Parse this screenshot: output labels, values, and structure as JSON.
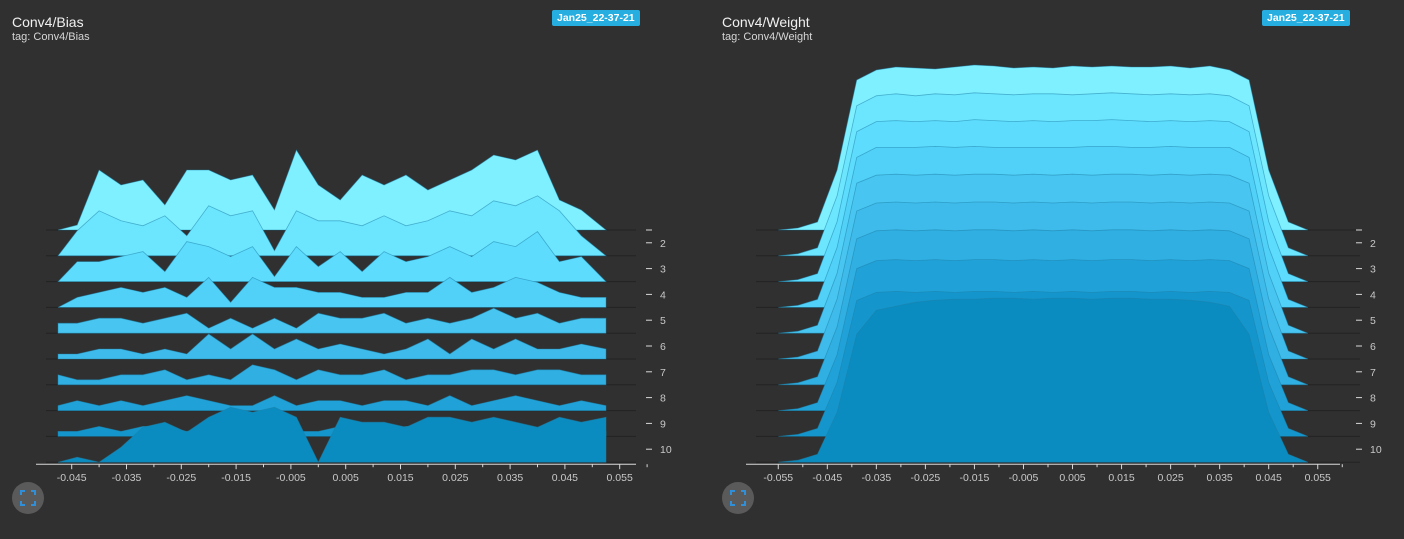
{
  "colors": {
    "background": "#303030",
    "badge": "#27aee0",
    "step_colors": [
      "#7ff0ff",
      "#6ce6ff",
      "#5ddcfd",
      "#52d1f8",
      "#48c6f1",
      "#3ebbea",
      "#30afe2",
      "#20a2d8",
      "#1496cc",
      "#0a8cc0"
    ]
  },
  "charts": [
    {
      "title": "Conv4/Bias",
      "subtitle": "tag: Conv4/Bias",
      "run": "Jan25_22-37-21",
      "expand_icon": "fullscreen-icon"
    },
    {
      "title": "Conv4/Weight",
      "subtitle": "tag: Conv4/Weight",
      "run": "Jan25_22-37-21",
      "expand_icon": "fullscreen-icon"
    }
  ],
  "chart_data": [
    {
      "type": "area",
      "title": "Conv4/Bias",
      "subtitle": "tag: Conv4/Bias",
      "chart_style": "offset histogram (ridge)",
      "x_range": [
        -0.0475,
        0.0525
      ],
      "x_ticks": [
        -0.045,
        -0.035,
        -0.025,
        -0.015,
        -0.005,
        0.005,
        0.015,
        0.025,
        0.035,
        0.045,
        0.055
      ],
      "x_tick_labels": [
        "-0.045",
        "-0.035",
        "-0.025",
        "-0.015",
        "-0.005",
        "0.005",
        "0.015",
        "0.025",
        "0.035",
        "0.045",
        "0.055"
      ],
      "step_tick_labels": [
        "2",
        "3",
        "4",
        "5",
        "6",
        "7",
        "8",
        "9",
        "10"
      ],
      "x": [
        -0.0475,
        -0.044,
        -0.04,
        -0.036,
        -0.032,
        -0.028,
        -0.024,
        -0.02,
        -0.016,
        -0.012,
        -0.008,
        -0.004,
        0.0,
        0.004,
        0.008,
        0.012,
        0.016,
        0.02,
        0.024,
        0.028,
        0.032,
        0.036,
        0.04,
        0.044,
        0.048,
        0.0525
      ],
      "series": [
        {
          "step": 1,
          "values": [
            0.0,
            5,
            60,
            45,
            50,
            25,
            60,
            60,
            50,
            55,
            20,
            80,
            45,
            30,
            55,
            45,
            55,
            40,
            50,
            60,
            75,
            70,
            80,
            30,
            20,
            0.0
          ]
        },
        {
          "step": 2,
          "values": [
            0.0,
            25,
            45,
            35,
            30,
            40,
            20,
            50,
            40,
            45,
            5,
            45,
            35,
            35,
            30,
            40,
            30,
            35,
            45,
            40,
            55,
            50,
            60,
            45,
            20,
            0.0
          ]
        },
        {
          "step": 3,
          "values": [
            0.0,
            20,
            20,
            25,
            30,
            10,
            40,
            35,
            25,
            35,
            5,
            35,
            15,
            30,
            10,
            30,
            20,
            25,
            35,
            25,
            40,
            35,
            50,
            20,
            25,
            0.0
          ]
        },
        {
          "step": 4,
          "values": [
            0.0,
            10,
            15,
            20,
            15,
            20,
            10,
            30,
            5,
            30,
            20,
            20,
            15,
            15,
            10,
            10,
            15,
            15,
            30,
            15,
            20,
            30,
            25,
            15,
            10,
            10
          ]
        },
        {
          "step": 5,
          "values": [
            10,
            10,
            15,
            15,
            10,
            15,
            20,
            5,
            15,
            5,
            15,
            5,
            20,
            15,
            15,
            20,
            10,
            15,
            10,
            15,
            25,
            15,
            20,
            10,
            15,
            15
          ]
        },
        {
          "step": 6,
          "values": [
            5,
            5,
            10,
            10,
            5,
            10,
            5,
            25,
            10,
            25,
            10,
            20,
            10,
            15,
            10,
            5,
            10,
            20,
            5,
            20,
            10,
            20,
            10,
            10,
            15,
            10
          ]
        },
        {
          "step": 7,
          "values": [
            10,
            5,
            5,
            10,
            10,
            15,
            5,
            10,
            5,
            20,
            15,
            5,
            15,
            10,
            10,
            15,
            5,
            10,
            10,
            15,
            15,
            10,
            15,
            15,
            10,
            10
          ]
        },
        {
          "step": 8,
          "values": [
            5,
            10,
            5,
            10,
            5,
            10,
            15,
            10,
            5,
            5,
            15,
            5,
            10,
            10,
            5,
            10,
            10,
            5,
            15,
            5,
            10,
            15,
            10,
            5,
            10,
            5
          ]
        },
        {
          "step": 9,
          "values": [
            5,
            5,
            10,
            5,
            10,
            10,
            5,
            10,
            15,
            10,
            10,
            5,
            5,
            10,
            10,
            5,
            10,
            10,
            10,
            10,
            10,
            10,
            5,
            10,
            5,
            5
          ]
        },
        {
          "step": 10,
          "values": [
            0.0,
            5,
            0.0,
            15,
            35,
            40,
            30,
            45,
            55,
            50,
            55,
            45,
            0.0,
            45,
            40,
            40,
            35,
            45,
            45,
            40,
            45,
            40,
            35,
            45,
            40,
            45
          ]
        }
      ]
    },
    {
      "type": "area",
      "title": "Conv4/Weight",
      "subtitle": "tag: Conv4/Weight",
      "chart_style": "offset histogram (ridge)",
      "x_range": [
        -0.0575,
        0.0575
      ],
      "x_ticks": [
        -0.055,
        -0.045,
        -0.035,
        -0.025,
        -0.015,
        -0.005,
        0.005,
        0.015,
        0.025,
        0.035,
        0.045,
        0.055
      ],
      "x_tick_labels": [
        "-0.055",
        "-0.045",
        "-0.035",
        "-0.025",
        "-0.015",
        "-0.005",
        "0.005",
        "0.015",
        "0.025",
        "0.035",
        "0.045",
        "0.055"
      ],
      "step_tick_labels": [
        "2",
        "3",
        "4",
        "5",
        "6",
        "7",
        "8",
        "9",
        "10"
      ],
      "x": [
        -0.055,
        -0.051,
        -0.047,
        -0.043,
        -0.039,
        -0.035,
        -0.031,
        -0.027,
        -0.023,
        -0.019,
        -0.015,
        -0.011,
        -0.007,
        -0.003,
        0.001,
        0.005,
        0.009,
        0.013,
        0.017,
        0.021,
        0.025,
        0.029,
        0.033,
        0.037,
        0.041,
        0.045,
        0.049,
        0.053
      ],
      "series": [
        {
          "step": 1,
          "values": [
            0,
            2,
            8,
            60,
            150,
            160,
            163,
            162,
            161,
            163,
            165,
            164,
            162,
            163,
            162,
            164,
            163,
            164,
            163,
            163,
            164,
            162,
            164,
            160,
            150,
            60,
            8,
            0
          ]
        },
        {
          "step": 2,
          "values": [
            0,
            2,
            8,
            60,
            150,
            160,
            162,
            160,
            162,
            161,
            163,
            162,
            161,
            162,
            162,
            161,
            162,
            163,
            162,
            161,
            162,
            161,
            162,
            160,
            150,
            60,
            8,
            0
          ]
        },
        {
          "step": 3,
          "values": [
            0,
            2,
            8,
            60,
            150,
            160,
            161,
            160,
            161,
            160,
            162,
            161,
            160,
            161,
            160,
            161,
            161,
            162,
            161,
            160,
            161,
            160,
            161,
            160,
            150,
            60,
            8,
            0
          ]
        },
        {
          "step": 4,
          "values": [
            0,
            2,
            8,
            60,
            150,
            160,
            160,
            160,
            161,
            160,
            161,
            160,
            160,
            160,
            160,
            160,
            161,
            161,
            160,
            160,
            161,
            160,
            160,
            160,
            150,
            60,
            8,
            0
          ]
        },
        {
          "step": 5,
          "values": [
            0,
            2,
            8,
            60,
            150,
            158,
            159,
            158,
            159,
            158,
            159,
            159,
            158,
            159,
            158,
            159,
            158,
            159,
            159,
            158,
            159,
            158,
            159,
            158,
            150,
            60,
            8,
            0
          ]
        },
        {
          "step": 6,
          "values": [
            0,
            2,
            8,
            60,
            148,
            156,
            157,
            156,
            157,
            156,
            157,
            157,
            156,
            157,
            156,
            157,
            156,
            157,
            157,
            156,
            157,
            156,
            157,
            156,
            148,
            60,
            8,
            0
          ]
        },
        {
          "step": 7,
          "values": [
            0,
            2,
            8,
            58,
            146,
            154,
            155,
            154,
            155,
            154,
            155,
            155,
            154,
            155,
            154,
            155,
            154,
            155,
            155,
            154,
            155,
            154,
            155,
            154,
            146,
            58,
            8,
            0
          ]
        },
        {
          "step": 8,
          "values": [
            0,
            2,
            8,
            56,
            142,
            150,
            151,
            150,
            151,
            150,
            151,
            151,
            150,
            151,
            150,
            151,
            150,
            151,
            151,
            150,
            151,
            150,
            151,
            150,
            142,
            56,
            8,
            0
          ]
        },
        {
          "step": 9,
          "values": [
            0,
            2,
            8,
            54,
            136,
            144,
            145,
            144,
            145,
            144,
            145,
            145,
            144,
            145,
            144,
            145,
            144,
            145,
            145,
            144,
            145,
            144,
            145,
            144,
            136,
            54,
            8,
            0
          ]
        },
        {
          "step": 10,
          "values": [
            0,
            2,
            8,
            50,
            128,
            152,
            156,
            160,
            162,
            163,
            163,
            164,
            164,
            163,
            164,
            164,
            163,
            164,
            164,
            163,
            163,
            162,
            160,
            156,
            128,
            50,
            8,
            0
          ]
        }
      ]
    }
  ]
}
